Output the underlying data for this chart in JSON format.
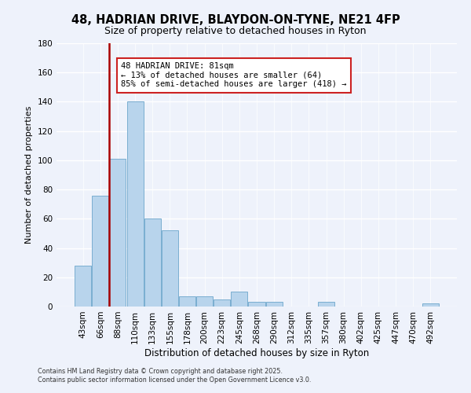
{
  "title": "48, HADRIAN DRIVE, BLAYDON-ON-TYNE, NE21 4FP",
  "subtitle": "Size of property relative to detached houses in Ryton",
  "xlabel": "Distribution of detached houses by size in Ryton",
  "ylabel": "Number of detached properties",
  "categories": [
    "43sqm",
    "66sqm",
    "88sqm",
    "110sqm",
    "133sqm",
    "155sqm",
    "178sqm",
    "200sqm",
    "223sqm",
    "245sqm",
    "268sqm",
    "290sqm",
    "312sqm",
    "335sqm",
    "357sqm",
    "380sqm",
    "402sqm",
    "425sqm",
    "447sqm",
    "470sqm",
    "492sqm"
  ],
  "values": [
    28,
    76,
    101,
    140,
    60,
    52,
    7,
    7,
    5,
    10,
    3,
    3,
    0,
    0,
    3,
    0,
    0,
    0,
    0,
    0,
    2
  ],
  "bar_color": "#b8d4ec",
  "bar_edge_color": "#7aaed0",
  "vline_color": "#aa0000",
  "ylim": [
    0,
    180
  ],
  "yticks": [
    0,
    20,
    40,
    60,
    80,
    100,
    120,
    140,
    160,
    180
  ],
  "annotation_title": "48 HADRIAN DRIVE: 81sqm",
  "annotation_line1": "← 13% of detached houses are smaller (64)",
  "annotation_line2": "85% of semi-detached houses are larger (418) →",
  "footer1": "Contains HM Land Registry data © Crown copyright and database right 2025.",
  "footer2": "Contains public sector information licensed under the Open Government Licence v3.0.",
  "background_color": "#eef2fb",
  "grid_color": "#d8dff0"
}
